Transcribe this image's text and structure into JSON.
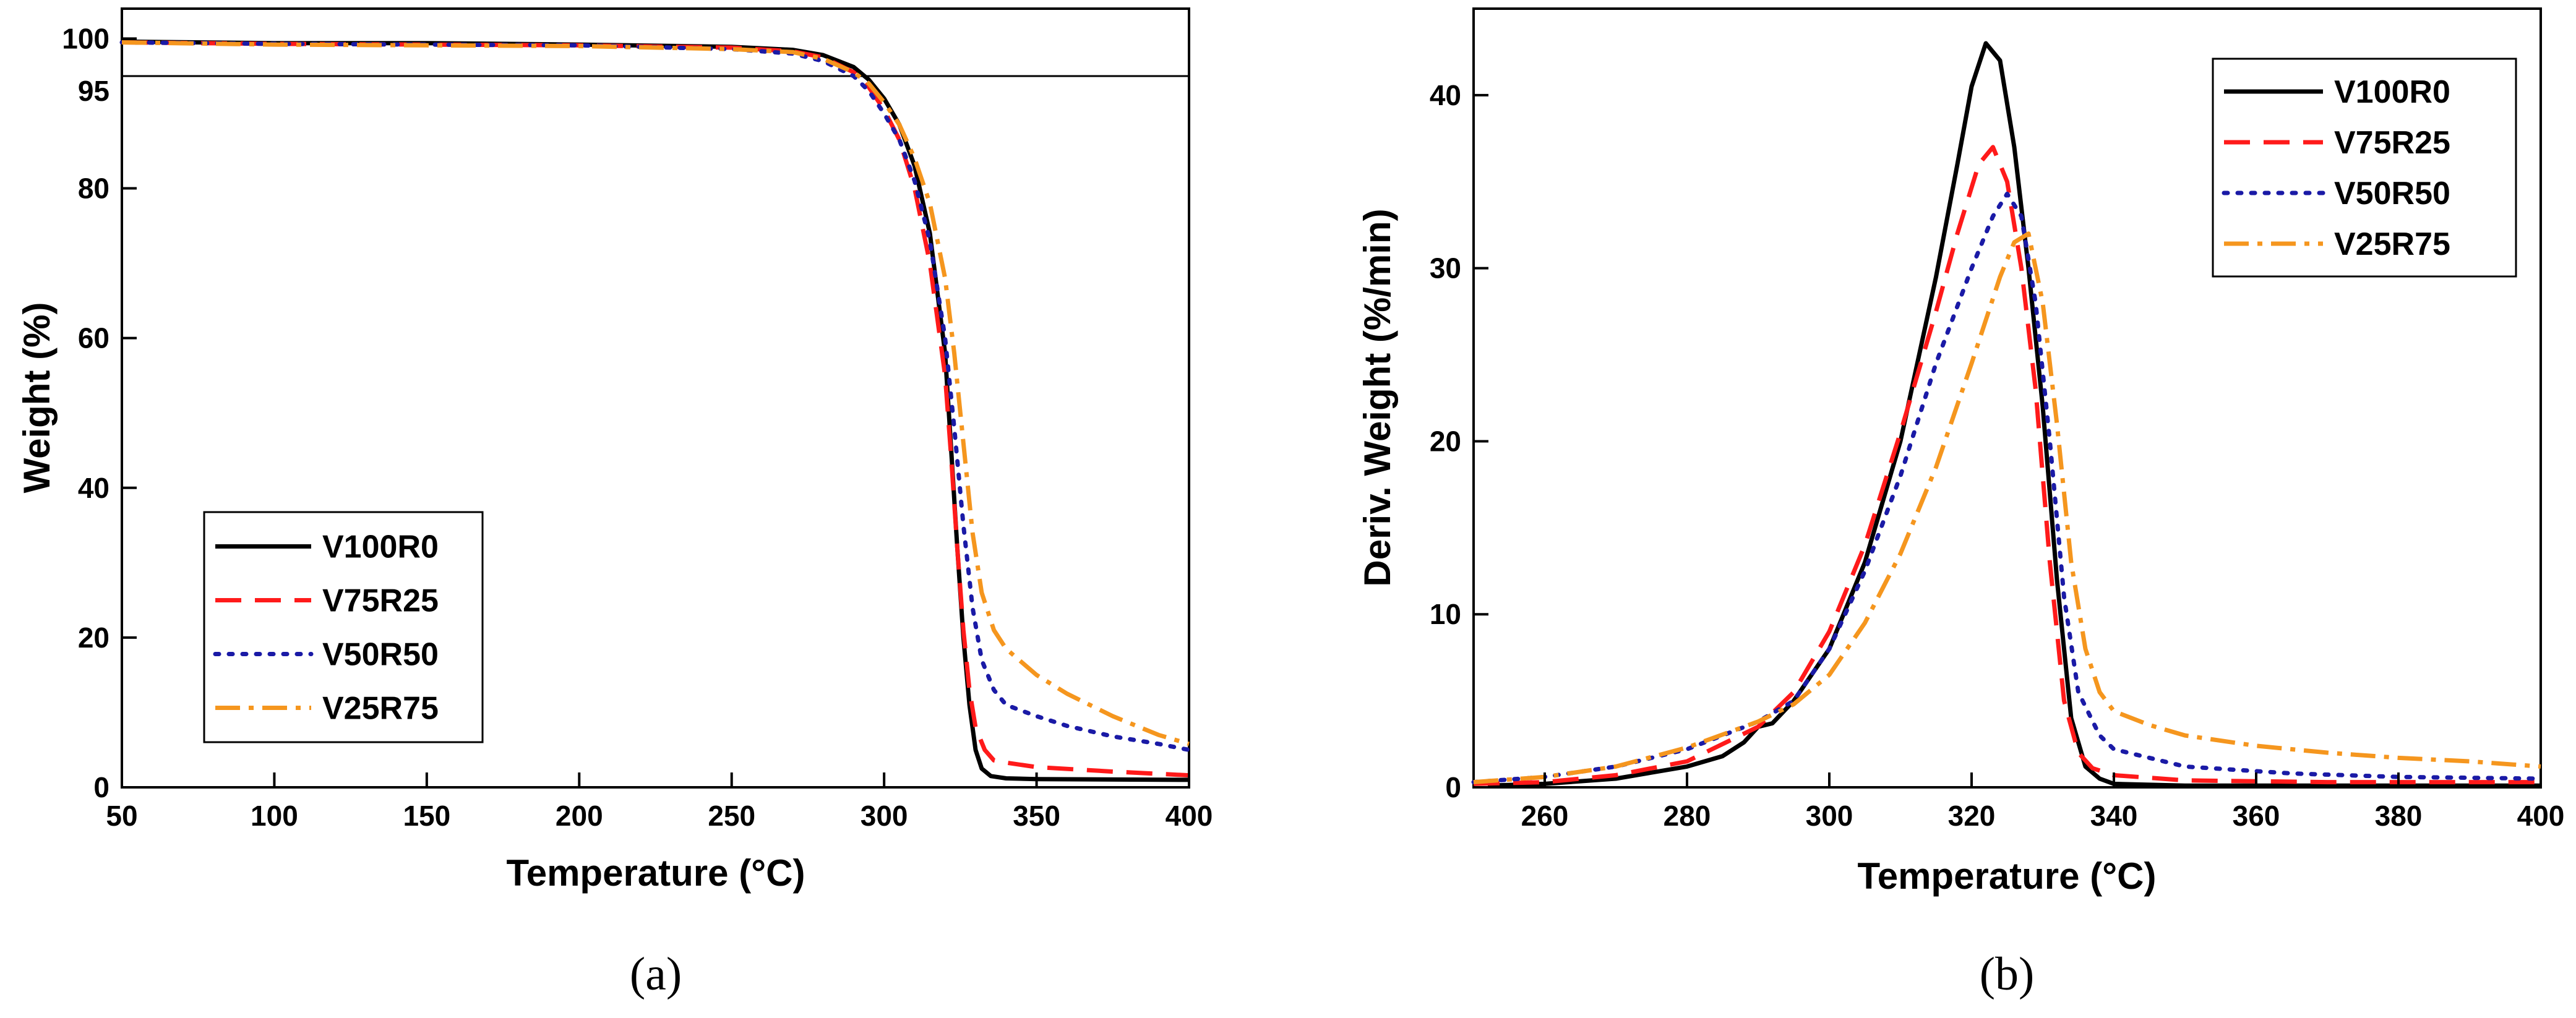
{
  "chart_data": [
    {
      "panel": "(a)",
      "type": "line",
      "xlabel": "Temperature (°C)",
      "ylabel": "Weight (%)",
      "xlim": [
        50,
        400
      ],
      "ylim": [
        0,
        104
      ],
      "xticks": [
        50,
        100,
        150,
        200,
        250,
        300,
        350,
        400
      ],
      "yticks": [
        0,
        20,
        40,
        60,
        80,
        100
      ],
      "extra_ytick": {
        "value": 95,
        "label": "95"
      },
      "reference_lines": [
        {
          "y": 95,
          "label": "95"
        }
      ],
      "legend_position": "lower-left",
      "series": [
        {
          "name": "V100R0",
          "color": "#000000",
          "style": "solid",
          "points": [
            [
              50,
              99.6
            ],
            [
              100,
              99.4
            ],
            [
              150,
              99.4
            ],
            [
              200,
              99.2
            ],
            [
              250,
              98.9
            ],
            [
              270,
              98.5
            ],
            [
              280,
              97.8
            ],
            [
              290,
              96.2
            ],
            [
              295,
              94.5
            ],
            [
              300,
              92
            ],
            [
              305,
              88.5
            ],
            [
              310,
              83
            ],
            [
              315,
              74
            ],
            [
              320,
              58
            ],
            [
              322,
              45
            ],
            [
              324,
              32
            ],
            [
              326,
              20
            ],
            [
              328,
              11
            ],
            [
              330,
              5
            ],
            [
              332,
              2.5
            ],
            [
              335,
              1.5
            ],
            [
              340,
              1.2
            ],
            [
              350,
              1.1
            ],
            [
              400,
              1.0
            ]
          ]
        },
        {
          "name": "V75R25",
          "color": "#ff1a1a",
          "style": "dashed",
          "points": [
            [
              50,
              99.5
            ],
            [
              100,
              99.3
            ],
            [
              150,
              99.2
            ],
            [
              200,
              99.1
            ],
            [
              250,
              98.8
            ],
            [
              270,
              98.3
            ],
            [
              280,
              97.5
            ],
            [
              290,
              95.5
            ],
            [
              295,
              93.5
            ],
            [
              300,
              90.5
            ],
            [
              305,
              86.5
            ],
            [
              310,
              80
            ],
            [
              315,
              70
            ],
            [
              320,
              55
            ],
            [
              322,
              44
            ],
            [
              324,
              32
            ],
            [
              326,
              21
            ],
            [
              328,
              13
            ],
            [
              330,
              8
            ],
            [
              333,
              5
            ],
            [
              336,
              3.6
            ],
            [
              340,
              3.3
            ],
            [
              350,
              2.7
            ],
            [
              375,
              2.1
            ],
            [
              400,
              1.6
            ]
          ]
        },
        {
          "name": "V50R50",
          "color": "#1a1aa6",
          "style": "dotted",
          "points": [
            [
              50,
              99.5
            ],
            [
              100,
              99.3
            ],
            [
              150,
              99.2
            ],
            [
              200,
              99.1
            ],
            [
              250,
              98.6
            ],
            [
              270,
              98.0
            ],
            [
              280,
              97.0
            ],
            [
              290,
              95.0
            ],
            [
              295,
              93
            ],
            [
              300,
              90
            ],
            [
              305,
              86.5
            ],
            [
              310,
              81
            ],
            [
              315,
              73
            ],
            [
              320,
              60
            ],
            [
              323,
              48
            ],
            [
              326,
              35
            ],
            [
              329,
              24
            ],
            [
              332,
              17
            ],
            [
              336,
              13
            ],
            [
              340,
              11
            ],
            [
              350,
              9.5
            ],
            [
              360,
              8.2
            ],
            [
              375,
              6.8
            ],
            [
              390,
              5.8
            ],
            [
              400,
              5.0
            ]
          ]
        },
        {
          "name": "V25R75",
          "color": "#f5961e",
          "style": "dashdot",
          "points": [
            [
              50,
              99.5
            ],
            [
              100,
              99.2
            ],
            [
              150,
              99.1
            ],
            [
              200,
              99.0
            ],
            [
              250,
              98.6
            ],
            [
              270,
              98.2
            ],
            [
              280,
              97.3
            ],
            [
              290,
              95.5
            ],
            [
              295,
              94
            ],
            [
              300,
              91.5
            ],
            [
              305,
              88.5
            ],
            [
              310,
              84
            ],
            [
              315,
              78
            ],
            [
              320,
              68
            ],
            [
              323,
              58
            ],
            [
              326,
              46
            ],
            [
              329,
              34
            ],
            [
              332,
              26
            ],
            [
              336,
              21
            ],
            [
              340,
              18.5
            ],
            [
              350,
              15
            ],
            [
              360,
              12.5
            ],
            [
              375,
              9.5
            ],
            [
              390,
              7
            ],
            [
              400,
              5.8
            ]
          ]
        }
      ]
    },
    {
      "panel": "(b)",
      "type": "line",
      "xlabel": "Temperature (°C)",
      "ylabel": "Deriv. Weight (%/min)",
      "xlim": [
        250,
        400
      ],
      "ylim": [
        0,
        45
      ],
      "xticks": [
        260,
        280,
        300,
        320,
        340,
        360,
        380,
        400
      ],
      "yticks": [
        0,
        10,
        20,
        30,
        40
      ],
      "legend_position": "top-right",
      "series": [
        {
          "name": "V100R0",
          "color": "#000000",
          "style": "solid",
          "points": [
            [
              252,
              0.1
            ],
            [
              260,
              0.2
            ],
            [
              270,
              0.5
            ],
            [
              280,
              1.2
            ],
            [
              285,
              1.8
            ],
            [
              288,
              2.6
            ],
            [
              290,
              3.5
            ],
            [
              292,
              3.7
            ],
            [
              295,
              5
            ],
            [
              300,
              8
            ],
            [
              305,
              13
            ],
            [
              310,
              20
            ],
            [
              315,
              29.5
            ],
            [
              318,
              36
            ],
            [
              320,
              40.5
            ],
            [
              322,
              43
            ],
            [
              324,
              42
            ],
            [
              326,
              37
            ],
            [
              328,
              30
            ],
            [
              330,
              22
            ],
            [
              332,
              12
            ],
            [
              334,
              4
            ],
            [
              336,
              1.2
            ],
            [
              338,
              0.5
            ],
            [
              340,
              0.2
            ],
            [
              350,
              0.1
            ],
            [
              400,
              0.1
            ]
          ]
        },
        {
          "name": "V75R25",
          "color": "#ff1a1a",
          "style": "dashed",
          "points": [
            [
              250,
              0.2
            ],
            [
              260,
              0.3
            ],
            [
              270,
              0.7
            ],
            [
              280,
              1.5
            ],
            [
              290,
              3.5
            ],
            [
              295,
              5.5
            ],
            [
              300,
              9
            ],
            [
              305,
              14
            ],
            [
              310,
              20.5
            ],
            [
              315,
              27.5
            ],
            [
              318,
              32
            ],
            [
              321,
              36
            ],
            [
              323,
              37
            ],
            [
              325,
              35
            ],
            [
              327,
              30
            ],
            [
              329,
              23
            ],
            [
              331,
              13
            ],
            [
              333,
              5
            ],
            [
              335,
              2
            ],
            [
              337,
              1.1
            ],
            [
              340,
              0.7
            ],
            [
              350,
              0.4
            ],
            [
              370,
              0.3
            ],
            [
              400,
              0.3
            ]
          ]
        },
        {
          "name": "V50R50",
          "color": "#1a1aa6",
          "style": "dotted",
          "points": [
            [
              250,
              0.3
            ],
            [
              260,
              0.6
            ],
            [
              270,
              1.2
            ],
            [
              280,
              2.2
            ],
            [
              290,
              3.8
            ],
            [
              295,
              5
            ],
            [
              300,
              8
            ],
            [
              305,
              12.5
            ],
            [
              310,
              18
            ],
            [
              315,
              24.5
            ],
            [
              320,
              30
            ],
            [
              323,
              33
            ],
            [
              325,
              34.3
            ],
            [
              327,
              33
            ],
            [
              329,
              28
            ],
            [
              331,
              20
            ],
            [
              333,
              11
            ],
            [
              335,
              5.5
            ],
            [
              338,
              3
            ],
            [
              340,
              2.2
            ],
            [
              350,
              1.2
            ],
            [
              365,
              0.8
            ],
            [
              380,
              0.6
            ],
            [
              400,
              0.5
            ]
          ]
        },
        {
          "name": "V25R75",
          "color": "#f5961e",
          "style": "dashdot",
          "points": [
            [
              250,
              0.3
            ],
            [
              260,
              0.6
            ],
            [
              270,
              1.2
            ],
            [
              280,
              2.3
            ],
            [
              290,
              3.8
            ],
            [
              295,
              4.8
            ],
            [
              300,
              6.5
            ],
            [
              305,
              9.5
            ],
            [
              310,
              13.5
            ],
            [
              315,
              18.5
            ],
            [
              320,
              24.5
            ],
            [
              324,
              29.5
            ],
            [
              326,
              31.5
            ],
            [
              328,
              32
            ],
            [
              330,
              28
            ],
            [
              332,
              21
            ],
            [
              334,
              13
            ],
            [
              336,
              8
            ],
            [
              338,
              5.5
            ],
            [
              340,
              4.4
            ],
            [
              345,
              3.6
            ],
            [
              350,
              3
            ],
            [
              360,
              2.4
            ],
            [
              370,
              2
            ],
            [
              380,
              1.7
            ],
            [
              390,
              1.5
            ],
            [
              400,
              1.2
            ]
          ]
        }
      ]
    }
  ],
  "captions": [
    "(a)",
    "(b)"
  ]
}
